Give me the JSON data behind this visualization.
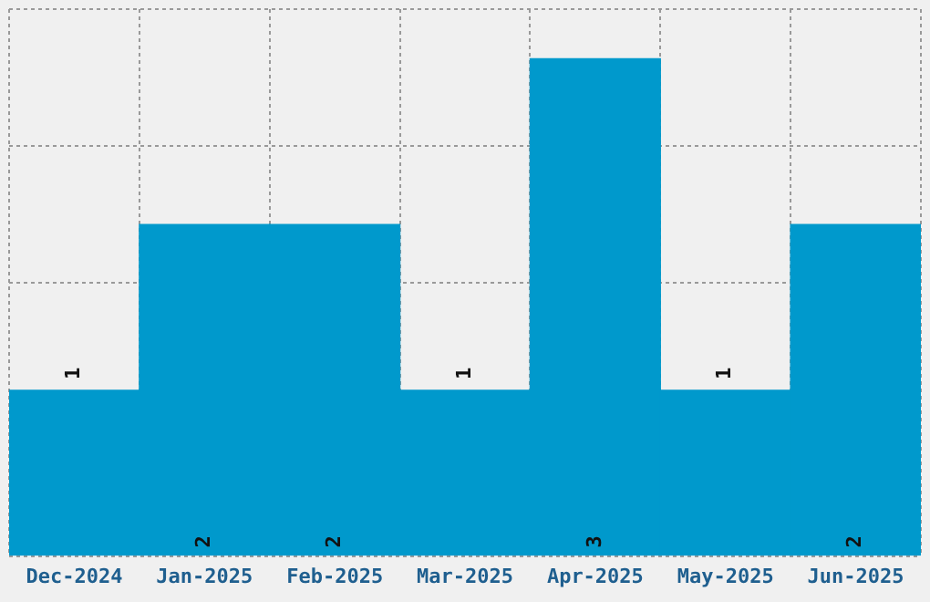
{
  "chart_data": {
    "type": "bar",
    "categories": [
      "Dec-2024",
      "Jan-2025",
      "Feb-2025",
      "Mar-2025",
      "Apr-2025",
      "May-2025",
      "Jun-2025"
    ],
    "values": [
      1,
      2,
      2,
      1,
      3,
      1,
      2
    ],
    "color": "#0099cc",
    "ylim": [
      0,
      3.3
    ],
    "tick_labels": "x",
    "grid": true,
    "data_labels": true
  }
}
